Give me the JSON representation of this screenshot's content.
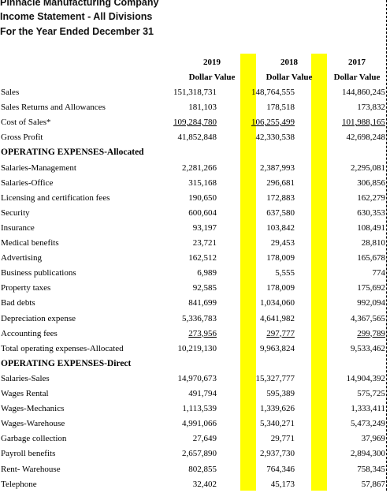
{
  "header": {
    "company": "Pinnacle Manufacturing Company",
    "statement": "Income Statement - All Divisions",
    "period": "For the Year Ended December 31"
  },
  "columns": [
    {
      "year": "2019",
      "sub": "Dollar Value"
    },
    {
      "year": "2018",
      "sub": "Dollar Value"
    },
    {
      "year": "2017",
      "sub": "Dollar Value"
    }
  ],
  "rows": [
    {
      "label": "Sales",
      "v": [
        "151,318,731",
        "148,764,555",
        "144,860,245"
      ]
    },
    {
      "label": "Sales Returns and Allowances",
      "v": [
        "181,103",
        "178,518",
        "173,832"
      ]
    },
    {
      "label": "Cost of Sales*",
      "v": [
        "109,284,780",
        "106,255,499",
        "101,988,165"
      ],
      "underline": true
    },
    {
      "label": "Gross Profit",
      "v": [
        "41,852,848",
        "42,330,538",
        "42,698,248"
      ]
    },
    {
      "label": "OPERATING EXPENSES-Allocated",
      "section": true
    },
    {
      "label": "Salaries-Management",
      "v": [
        "2,281,266",
        "2,387,993",
        "2,295,081"
      ]
    },
    {
      "label": "Salaries-Office",
      "v": [
        "315,168",
        "296,681",
        "306,856"
      ]
    },
    {
      "label": "Licensing and certification fees",
      "v": [
        "190,650",
        "172,883",
        "162,279"
      ]
    },
    {
      "label": "Security",
      "v": [
        "600,604",
        "637,580",
        "630,353"
      ]
    },
    {
      "label": "Insurance",
      "v": [
        "93,197",
        "103,842",
        "108,491"
      ]
    },
    {
      "label": "Medical benefits",
      "v": [
        "23,721",
        "29,453",
        "28,810"
      ]
    },
    {
      "label": "Advertising",
      "v": [
        "162,512",
        "178,009",
        "165,678"
      ]
    },
    {
      "label": "Business publications",
      "v": [
        "6,989",
        "5,555",
        "774"
      ]
    },
    {
      "label": "Property taxes",
      "v": [
        "92,585",
        "178,009",
        "175,692"
      ]
    },
    {
      "label": "Bad debts",
      "v": [
        "841,699",
        "1,034,060",
        "992,094"
      ]
    },
    {
      "label": "Depreciation expense",
      "v": [
        "5,336,783",
        "4,641,982",
        "4,367,565"
      ]
    },
    {
      "label": "Accounting fees",
      "v": [
        "273,956",
        "297,777",
        "299,789"
      ],
      "underline": true
    },
    {
      "label": "Total operating expenses-Allocated",
      "v": [
        "10,219,130",
        "9,963,824",
        "9,533,462"
      ]
    },
    {
      "label": "OPERATING EXPENSES-Direct",
      "section": true
    },
    {
      "label": "Salaries-Sales",
      "v": [
        "14,970,673",
        "15,327,777",
        "14,904,392"
      ]
    },
    {
      "label": "Wages Rental",
      "v": [
        "491,794",
        "595,389",
        "575,725"
      ]
    },
    {
      "label": "Wages-Mechanics",
      "v": [
        "1,113,539",
        "1,339,626",
        "1,333,411"
      ]
    },
    {
      "label": "Wages-Warehouse",
      "v": [
        "4,991,066",
        "5,340,271",
        "5,473,249"
      ]
    },
    {
      "label": "Garbage collection",
      "v": [
        "27,649",
        "29,771",
        "37,969"
      ]
    },
    {
      "label": "Payroll benefits",
      "v": [
        "2,657,890",
        "2,937,730",
        "2,894,300"
      ]
    },
    {
      "label": "Rent- Warehouse",
      "v": [
        "802,855",
        "764,346",
        "758,345"
      ]
    },
    {
      "label": "Telephone",
      "v": [
        "32,402",
        "45,173",
        "57,867"
      ]
    }
  ]
}
